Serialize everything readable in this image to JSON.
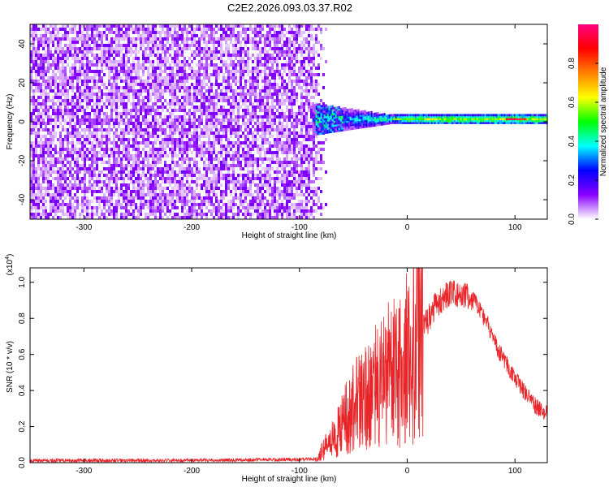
{
  "title": "C2E2.2026.093.03.37.R02",
  "colors": {
    "snr_line": "#e8262a",
    "weak_signal": "#6a0ee8",
    "frame": "#000000",
    "background": "#ffffff"
  },
  "chart_data": [
    {
      "type": "heatmap",
      "xlabel": "Height of straight line (km)",
      "ylabel": "Frequency (Hz)",
      "xlim": [
        -350,
        130
      ],
      "ylim": [
        -50,
        50
      ],
      "xticks": [
        -300,
        -200,
        -100,
        0,
        100
      ],
      "yticks": [
        -40,
        -20,
        0,
        20,
        40
      ],
      "noise_region_x": [
        -350,
        -75
      ],
      "signal_band": {
        "x_start": -88,
        "x_end": 130,
        "center_frequency_hz": 1.5,
        "half_width_hz_start": 8,
        "half_width_hz_end": 2,
        "peak_amplitude_x": [
          90,
          110
        ]
      },
      "colorbar": {
        "label": "Normalized spectral amplitude",
        "range": [
          0,
          1
        ],
        "ticks": [
          0.0,
          0.2,
          0.4,
          0.6,
          0.8
        ],
        "colormap": [
          "#ffffff",
          "#8a00ff",
          "#0000ff",
          "#00ffff",
          "#00ff00",
          "#ffff00",
          "#ff8000",
          "#ff0000",
          "#ff0080"
        ]
      }
    },
    {
      "type": "line",
      "xlabel": "Height of straight line (km)",
      "ylabel": "SNR (10 * v/v)",
      "y_multiplier": "(x10",
      "y_multiplier_exp": "4",
      "xlim": [
        -350,
        130
      ],
      "ylim": [
        0,
        1.08
      ],
      "xticks": [
        -300,
        -200,
        -100,
        0,
        100
      ],
      "yticks": [
        0.0,
        0.2,
        0.4,
        0.6,
        0.8,
        1.0
      ],
      "envelope": [
        [
          -350,
          0.012
        ],
        [
          -200,
          0.012
        ],
        [
          -100,
          0.018
        ],
        [
          -85,
          0.02
        ],
        [
          -75,
          0.09
        ],
        [
          -65,
          0.16
        ],
        [
          -55,
          0.26
        ],
        [
          -45,
          0.33
        ],
        [
          -35,
          0.4
        ],
        [
          -25,
          0.44
        ],
        [
          -15,
          0.5
        ],
        [
          -8,
          0.52
        ],
        [
          0,
          0.58
        ],
        [
          8,
          0.62
        ],
        [
          15,
          0.74
        ],
        [
          25,
          0.86
        ],
        [
          35,
          0.93
        ],
        [
          45,
          0.94
        ],
        [
          55,
          0.93
        ],
        [
          65,
          0.88
        ],
        [
          75,
          0.76
        ],
        [
          85,
          0.62
        ],
        [
          95,
          0.52
        ],
        [
          105,
          0.42
        ],
        [
          115,
          0.34
        ],
        [
          122,
          0.3
        ],
        [
          130,
          0.27
        ]
      ],
      "peak_spike": {
        "x": 10,
        "y": 1.08
      }
    }
  ]
}
